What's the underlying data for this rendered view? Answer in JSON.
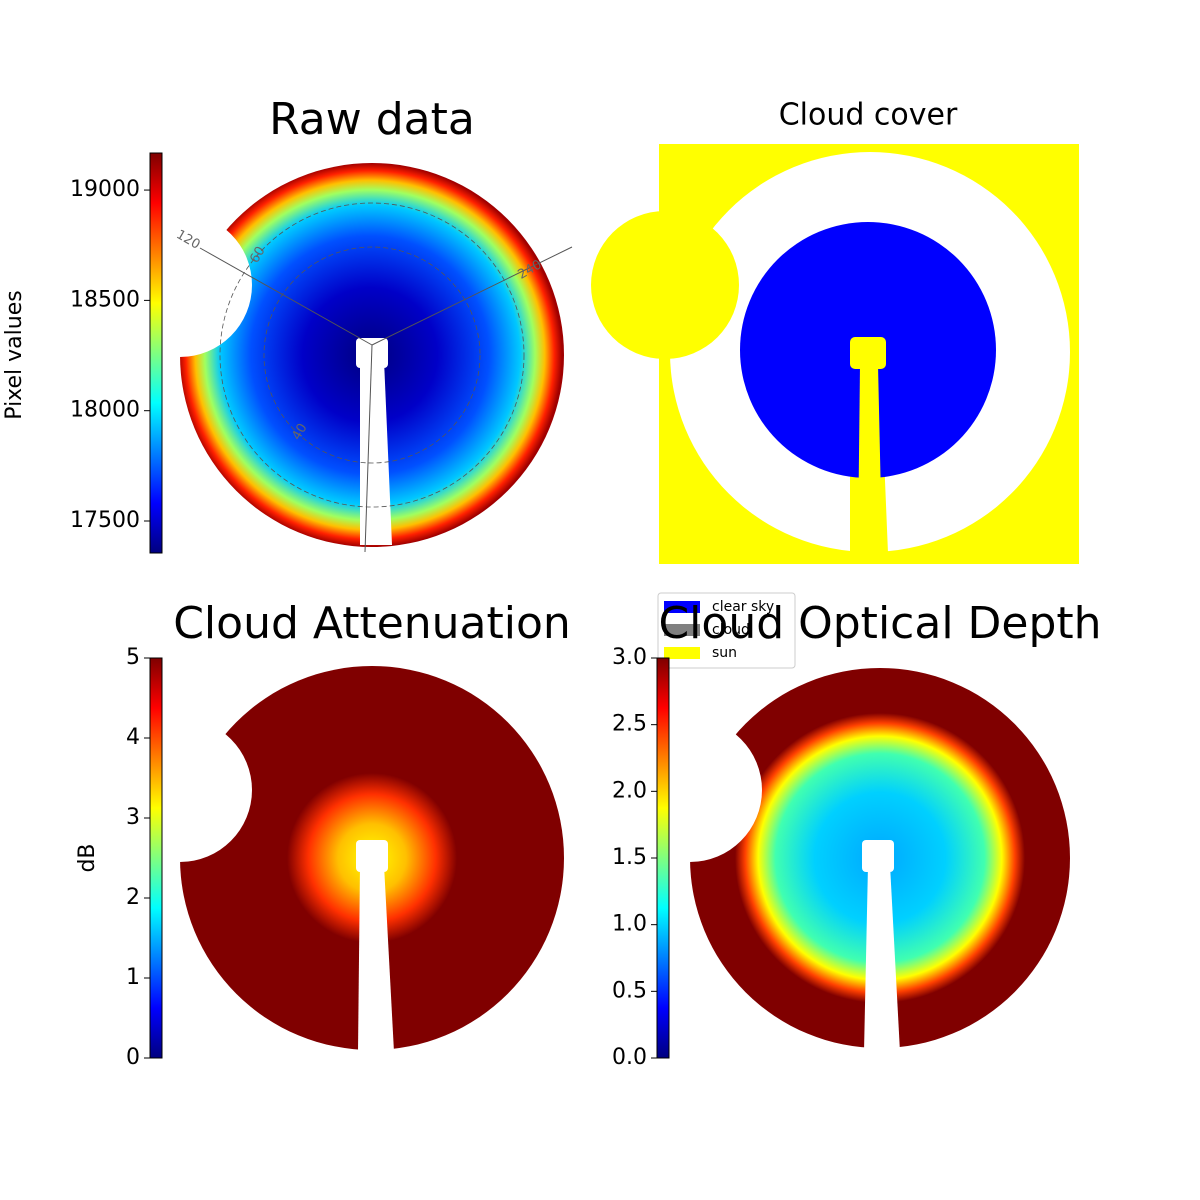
{
  "chart_data": [
    {
      "type": "image",
      "title": "Raw data",
      "colormap": "jet",
      "colorbar_label": "Pixel values",
      "clim": [
        17355,
        19168
      ],
      "cticks": [
        17500,
        18000,
        18500,
        19000
      ],
      "annotations": [
        "120",
        "60",
        "240",
        "40"
      ]
    },
    {
      "type": "categorical-image",
      "title": "Cloud cover",
      "legend": [
        {
          "name": "clear sky",
          "color": "#0000ff"
        },
        {
          "name": "cloud",
          "color": "#808080"
        },
        {
          "name": "sun",
          "color": "#ffff00"
        }
      ]
    },
    {
      "type": "image",
      "title": "Cloud Attenuation",
      "colormap": "jet",
      "colorbar_label": "dB",
      "clim": [
        0,
        5
      ],
      "cticks": [
        0,
        1,
        2,
        3,
        4,
        5
      ]
    },
    {
      "type": "image",
      "title": "Cloud Optical Depth",
      "colormap": "jet",
      "clim": [
        0,
        3
      ],
      "cticks": [
        {
          "value": 0,
          "label": "0.0"
        },
        {
          "value": 0.5,
          "label": "0.5"
        },
        {
          "value": 1,
          "label": "1.0"
        },
        {
          "value": 1.5,
          "label": "1.5"
        },
        {
          "value": 2,
          "label": "2.0"
        },
        {
          "value": 2.5,
          "label": "2.5"
        },
        {
          "value": 3,
          "label": "3.0"
        }
      ]
    }
  ]
}
